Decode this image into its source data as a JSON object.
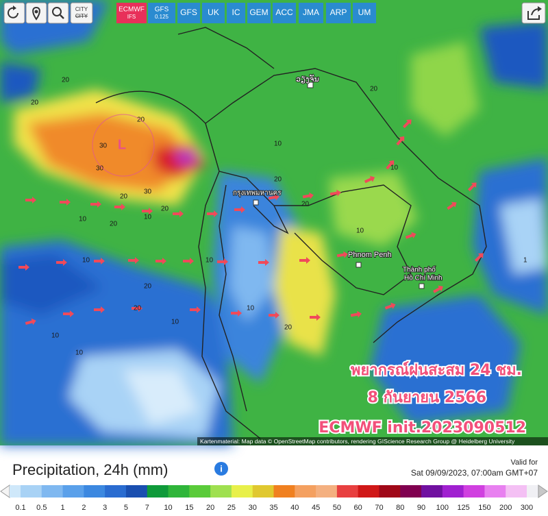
{
  "toolbar": {
    "city_button": "CITY",
    "models": [
      {
        "label": "ECMWF",
        "sub": "IFS"
      },
      {
        "label": "GFS",
        "sub": "0.125"
      },
      {
        "label": "GFS"
      },
      {
        "label": "UK"
      },
      {
        "label": "IC"
      },
      {
        "label": "GEM"
      },
      {
        "label": "ACC"
      },
      {
        "label": "JMA"
      },
      {
        "label": "ARP"
      },
      {
        "label": "UM"
      }
    ],
    "active_model": 0
  },
  "map": {
    "low_marker": "L",
    "cities": [
      "ວຽງຈັນ",
      "กรุงเทพมหานคร",
      "Phnom Penh",
      "Thành phố",
      "Hồ Chí Minh"
    ],
    "contour_labels": [
      "20",
      "20",
      "20",
      "30",
      "30",
      "30",
      "20",
      "20",
      "10",
      "10",
      "10",
      "20",
      "20",
      "10",
      "10",
      "10",
      "20",
      "10",
      "20",
      "20",
      "10",
      "10",
      "20",
      "10",
      "10",
      "20",
      "1"
    ],
    "attribution": "Kartenmaterial: Map data © OpenStreetMap contributors, rendering GIScience Research Group @ Heidelberg University"
  },
  "overlay": {
    "line1": "พยากรณ์ฝนสะสม 24 ชม.",
    "line2": "8 กันยายน 2566",
    "line3": "ECMWF init.2023090512"
  },
  "legend": {
    "title": "Precipitation, 24h (mm)",
    "valid_label": "Valid for",
    "valid_time": "Sat 09/09/2023, 07:00am GMT+07",
    "labels": [
      "0.1",
      "0.5",
      "1",
      "2",
      "3",
      "5",
      "7",
      "10",
      "15",
      "20",
      "25",
      "30",
      "35",
      "40",
      "45",
      "50",
      "60",
      "70",
      "80",
      "90",
      "100",
      "125",
      "150",
      "200",
      "300"
    ],
    "colors": [
      "#cfe8fa",
      "#a8d2f5",
      "#7fb8f0",
      "#5aa0ea",
      "#3c88e0",
      "#2a6cd0",
      "#1a4fb0",
      "#0f9a3a",
      "#2fb53a",
      "#5acb3a",
      "#9fe050",
      "#e8f04a",
      "#e0c830",
      "#f08020",
      "#f4a060",
      "#f4b080",
      "#e84040",
      "#d01818",
      "#a00818",
      "#800050",
      "#7010a0",
      "#a020d0",
      "#d040e0",
      "#e880f0",
      "#f4c0f4",
      "#f0f0f4"
    ]
  }
}
